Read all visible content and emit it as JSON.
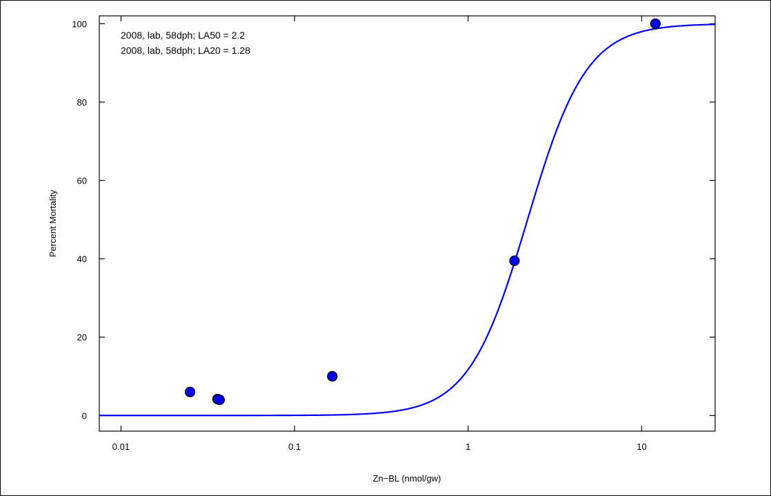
{
  "chart_data": {
    "type": "scatter",
    "title": "",
    "xlabel": "Zn−BL (nmol/gw)",
    "ylabel": "Percent Mortality",
    "x_scale": "log",
    "xlim": [
      0.0075,
      26.5
    ],
    "ylim": [
      -4,
      102
    ],
    "x_ticks": [
      {
        "value": 0.01,
        "label": "0.01"
      },
      {
        "value": 0.1,
        "label": "0.1"
      },
      {
        "value": 1,
        "label": "1"
      },
      {
        "value": 10,
        "label": "10"
      }
    ],
    "y_ticks": [
      {
        "value": 0,
        "label": "0"
      },
      {
        "value": 20,
        "label": "20"
      },
      {
        "value": 40,
        "label": "40"
      },
      {
        "value": 60,
        "label": "60"
      },
      {
        "value": 80,
        "label": "80"
      },
      {
        "value": 100,
        "label": "100"
      }
    ],
    "grid": false,
    "annotations": [
      "2008, lab, 58dph; LA50 = 2.2",
      "2008, lab, 58dph; LA20 = 1.28"
    ],
    "points": {
      "color": "#0000ee",
      "x": [
        0.025,
        0.036,
        0.037,
        0.165,
        1.85,
        12.0
      ],
      "y": [
        6,
        4.2,
        4,
        10,
        39.5,
        100
      ]
    },
    "fit_curve": {
      "color": "#0000ee",
      "model": "log-logistic",
      "LA50": 2.2,
      "LA20": 1.28
    }
  }
}
